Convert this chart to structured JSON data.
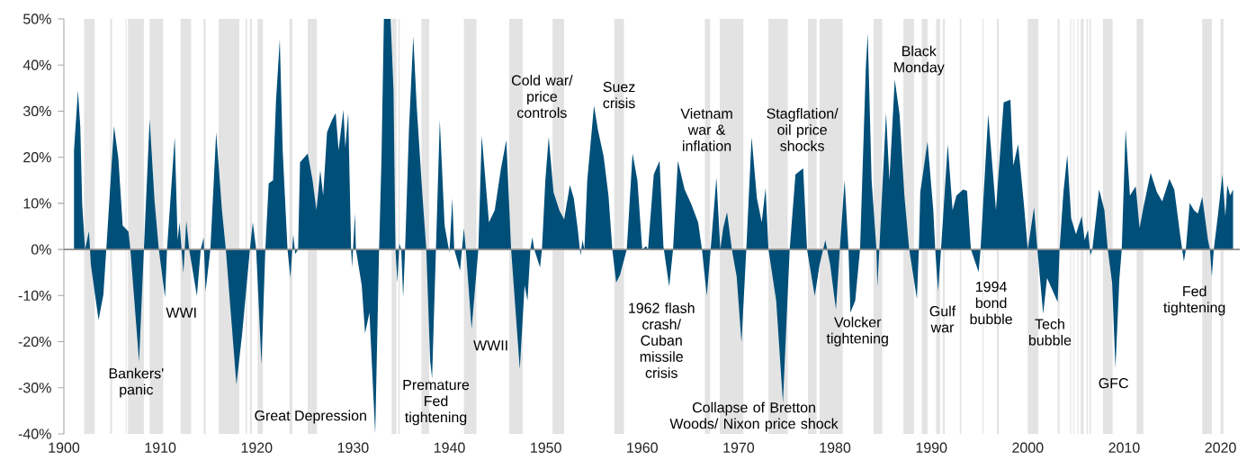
{
  "chart_data": {
    "type": "area",
    "color": "#004f79",
    "x": [
      1901.05,
      1901.46,
      1901.7,
      1901.9,
      1902.2,
      1902.6,
      1902.8,
      1903.6,
      1904.1,
      1904.4,
      1905.2,
      1905.65,
      1906.1,
      1906.7,
      1906.9,
      1907.8,
      1908.3,
      1908.9,
      1909.4,
      1909.85,
      1910.5,
      1910.7,
      1911.5,
      1911.8,
      1912.0,
      1912.4,
      1912.7,
      1913.0,
      1913.8,
      1914.2,
      1914.5,
      1914.7,
      1915.2,
      1915.8,
      1916.4,
      1916.8,
      1917.9,
      1918.5,
      1919.3,
      1919.6,
      1919.95,
      1920.5,
      1920.9,
      1921.25,
      1921.7,
      1922.0,
      1922.4,
      1922.7,
      1923.2,
      1923.5,
      1923.8,
      1924.0,
      1924.3,
      1924.5,
      1925.3,
      1925.8,
      1926.2,
      1926.6,
      1926.9,
      1927.3,
      1927.8,
      1928.2,
      1928.5,
      1929.0,
      1929.2,
      1929.5,
      1929.8,
      1929.9,
      1930.2,
      1930.3,
      1930.9,
      1931.25,
      1931.7,
      1932.3,
      1932.7,
      1932.95,
      1933.2,
      1933.9,
      1934.2,
      1934.4,
      1934.6,
      1934.8,
      1935.0,
      1935.2,
      1935.4,
      1935.8,
      1936.25,
      1936.6,
      1937.2,
      1937.6,
      1938.0,
      1938.2,
      1938.6,
      1939.0,
      1939.5,
      1940.0,
      1940.3,
      1940.5,
      1941.1,
      1941.5,
      1941.7,
      1942.3,
      1943.0,
      1943.35,
      1944.1,
      1944.7,
      1945.35,
      1945.9,
      1946.4,
      1947.3,
      1947.8,
      1948.1,
      1948.4,
      1948.6,
      1948.8,
      1949.4,
      1949.6,
      1949.95,
      1950.3,
      1950.8,
      1951.4,
      1951.9,
      1952.5,
      1952.9,
      1953.3,
      1953.6,
      1953.8,
      1954.0,
      1954.3,
      1955.0,
      1955.4,
      1956.0,
      1956.5,
      1956.9,
      1957.3,
      1957.7,
      1958.4,
      1959.0,
      1959.5,
      1960.0,
      1960.4,
      1960.6,
      1961.2,
      1961.8,
      1962.2,
      1962.8,
      1963.2,
      1963.7,
      1964.4,
      1965.1,
      1965.8,
      1966.2,
      1966.7,
      1967.1,
      1967.7,
      1968.1,
      1968.4,
      1968.8,
      1969.3,
      1969.8,
      1970.3,
      1970.8,
      1971.35,
      1971.9,
      1972.4,
      1972.8,
      1973.1,
      1973.9,
      1974.6,
      1975.3,
      1975.9,
      1976.7,
      1977.1,
      1977.9,
      1978.4,
      1979.0,
      1979.5,
      1980.1,
      1980.5,
      1981.0,
      1981.4,
      1981.6,
      1982.1,
      1982.6,
      1983.2,
      1983.4,
      1983.8,
      1984.3,
      1984.4,
      1984.6,
      1985.3,
      1985.65,
      1986.2,
      1986.7,
      1987.2,
      1987.7,
      1988.5,
      1988.7,
      1988.85,
      1989.6,
      1990.2,
      1990.4,
      1990.7,
      1991.0,
      1991.7,
      1992.2,
      1992.6,
      1993.3,
      1993.7,
      1994.1,
      1994.9,
      1995.1,
      1995.9,
      1996.7,
      1997.5,
      1998.2,
      1998.5,
      1999.0,
      1999.6,
      2000.0,
      2000.65,
      2001.0,
      2001.6,
      2002.0,
      2002.5,
      2003.1,
      2003.3,
      2003.7,
      2004.1,
      2004.5,
      2005.0,
      2005.6,
      2005.9,
      2006.25,
      2006.5,
      2006.7,
      2007.4,
      2007.95,
      2008.3,
      2008.75,
      2009.1,
      2009.5,
      2009.75,
      2010.15,
      2010.6,
      2011.2,
      2011.6,
      2012.0,
      2012.75,
      2013.4,
      2013.95,
      2014.7,
      2015.2,
      2015.8,
      2016.2,
      2016.4,
      2016.8,
      2017.25,
      2017.65,
      2018.1,
      2018.7,
      2018.9,
      2019.1,
      2019.3,
      2019.75,
      2020.2,
      2020.5,
      2020.7,
      2021.0,
      2021.3
    ],
    "values": [
      21.5,
      34.5,
      26.7,
      9.8,
      0,
      4,
      -3.3,
      -15.3,
      -9.8,
      0,
      26.7,
      19.8,
      5.2,
      3.9,
      0,
      -24.4,
      0,
      28.3,
      10.7,
      0,
      -10.4,
      0,
      24.4,
      2,
      5.9,
      -5.2,
      6.2,
      0,
      -10.1,
      0,
      2.6,
      -9.1,
      0,
      25.4,
      8.5,
      0,
      -29.3,
      -18.2,
      0,
      5.9,
      0,
      -25,
      0,
      14.3,
      15,
      31.9,
      45.6,
      21.5,
      0,
      -6.2,
      3.3,
      -1,
      0,
      18.9,
      20.8,
      15,
      8.5,
      17.2,
      11.7,
      25.4,
      28,
      29.6,
      21.5,
      30.3,
      22.1,
      29.6,
      0,
      -3.9,
      7.8,
      0,
      -7.8,
      -18.2,
      -13.7,
      -40,
      0,
      19.5,
      50,
      50,
      34.5,
      0,
      -7.2,
      1.3,
      0,
      -10.4,
      0,
      26,
      46.2,
      31.2,
      11.7,
      0,
      -24.1,
      -28,
      0,
      28,
      5.2,
      -0.7,
      11.1,
      0,
      -4.6,
      4.6,
      0,
      -17.2,
      0,
      24.7,
      5.9,
      8.5,
      17.6,
      23.7,
      0,
      -26,
      -7.8,
      -11.1,
      0,
      2.6,
      0,
      -3.9,
      0,
      15,
      24.4,
      12.4,
      8.5,
      6.5,
      14,
      11.1,
      4.6,
      -1.3,
      2,
      0,
      15,
      31.2,
      26,
      20.2,
      11.7,
      0,
      -7.2,
      -5.5,
      0,
      20.8,
      15,
      0,
      0.7,
      0,
      16.3,
      19.2,
      0.7,
      -8.1,
      0,
      19.2,
      13,
      9.8,
      5.9,
      0,
      -10.1,
      0,
      15.6,
      0,
      4.6,
      8.1,
      0,
      -5.9,
      -20.2,
      0,
      24.4,
      11.1,
      5.9,
      13.3,
      0,
      -11.1,
      -33.2,
      0,
      16.3,
      17.6,
      0,
      -10.1,
      -3.3,
      2,
      -3.3,
      -13,
      0,
      15,
      0,
      -13.7,
      -11.1,
      0,
      39.4,
      46.8,
      15,
      0,
      -8.1,
      0,
      29.6,
      15,
      36.8,
      29.3,
      11.7,
      0,
      -10.7,
      0,
      12.4,
      23.4,
      8.5,
      0,
      -9.1,
      0,
      22.8,
      8.5,
      11.7,
      13,
      12.7,
      0,
      -4.9,
      0,
      29.3,
      8.5,
      31.9,
      32.5,
      18.2,
      22.8,
      9.8,
      0,
      9.1,
      0,
      -14,
      -6.2,
      -8.5,
      -11.4,
      0,
      12.4,
      20.5,
      6.8,
      3.3,
      7.2,
      2,
      4.2,
      -1.3,
      0,
      13,
      8.5,
      0,
      -7.2,
      -25.7,
      -6.5,
      0,
      26,
      11.7,
      13.7,
      4.6,
      9.1,
      16.6,
      12.4,
      10.4,
      15.3,
      13,
      3.3,
      -2.6,
      0,
      10.1,
      8.5,
      7.8,
      11.4,
      2,
      0,
      -5.9,
      0,
      7.8,
      16.3,
      7.2,
      14,
      11.7,
      13
    ],
    "xlim": [
      1900,
      2022
    ],
    "ylim": [
      -40,
      50
    ],
    "xticks": [
      1900,
      1910,
      1920,
      1930,
      1940,
      1950,
      1960,
      1970,
      1980,
      1990,
      2000,
      2010,
      2020
    ],
    "yticks": [
      {
        "value": -40,
        "label": "-40%"
      },
      {
        "value": -30,
        "label": "-30%"
      },
      {
        "value": -20,
        "label": "-20%"
      },
      {
        "value": -10,
        "label": "-10%"
      },
      {
        "value": 0,
        "label": "0%"
      },
      {
        "value": 10,
        "label": "10%"
      },
      {
        "value": 20,
        "label": "20%"
      },
      {
        "value": 30,
        "label": "30%"
      },
      {
        "value": 40,
        "label": "40%"
      },
      {
        "value": 50,
        "label": "50%"
      }
    ],
    "bands": [
      {
        "axis": "x",
        "from": 1902.1,
        "to": 1903.2,
        "color": "#e3e3e3"
      },
      {
        "axis": "x",
        "from": 1904.8,
        "to": 1905.0,
        "color": "#e3e3e3"
      },
      {
        "axis": "x",
        "from": 1906.4,
        "to": 1906.5,
        "color": "#e3e3e3"
      },
      {
        "axis": "x",
        "from": 1906.65,
        "to": 1908.3,
        "color": "#e3e3e3"
      },
      {
        "axis": "x",
        "from": 1908.9,
        "to": 1910.3,
        "color": "#e3e3e3"
      },
      {
        "axis": "x",
        "from": 1912.1,
        "to": 1913.2,
        "color": "#e3e3e3"
      },
      {
        "axis": "x",
        "from": 1914.5,
        "to": 1914.7,
        "color": "#e3e3e3"
      },
      {
        "axis": "x",
        "from": 1916.05,
        "to": 1918.2,
        "color": "#e3e3e3"
      },
      {
        "axis": "x",
        "from": 1918.85,
        "to": 1919.0,
        "color": "#e3e3e3"
      },
      {
        "axis": "x",
        "from": 1919.3,
        "to": 1919.5,
        "color": "#e3e3e3"
      },
      {
        "axis": "x",
        "from": 1920.1,
        "to": 1920.65,
        "color": "#e3e3e3"
      },
      {
        "axis": "x",
        "from": 1923.4,
        "to": 1923.7,
        "color": "#e3e3e3"
      },
      {
        "axis": "x",
        "from": 1925.3,
        "to": 1926.25,
        "color": "#e3e3e3"
      },
      {
        "axis": "x",
        "from": 1934.0,
        "to": 1934.5,
        "color": "#e3e3e3"
      },
      {
        "axis": "x",
        "from": 1934.7,
        "to": 1934.85,
        "color": "#e3e3e3"
      },
      {
        "axis": "x",
        "from": 1937.1,
        "to": 1937.9,
        "color": "#e3e3e3"
      },
      {
        "axis": "x",
        "from": 1941.5,
        "to": 1942.8,
        "color": "#e3e3e3"
      },
      {
        "axis": "x",
        "from": 1946.2,
        "to": 1947.6,
        "color": "#e3e3e3"
      },
      {
        "axis": "x",
        "from": 1950.7,
        "to": 1951.9,
        "color": "#e3e3e3"
      },
      {
        "axis": "x",
        "from": 1957.1,
        "to": 1958.1,
        "color": "#e3e3e3"
      },
      {
        "axis": "x",
        "from": 1966.5,
        "to": 1967.05,
        "color": "#e3e3e3"
      },
      {
        "axis": "x",
        "from": 1968.05,
        "to": 1970.5,
        "color": "#e3e3e3"
      },
      {
        "axis": "x",
        "from": 1973.1,
        "to": 1975.1,
        "color": "#e3e3e3"
      },
      {
        "axis": "x",
        "from": 1977.2,
        "to": 1978.1,
        "color": "#e3e3e3"
      },
      {
        "axis": "x",
        "from": 1978.4,
        "to": 1980.8,
        "color": "#e3e3e3"
      },
      {
        "axis": "x",
        "from": 1984.0,
        "to": 1984.9,
        "color": "#e3e3e3"
      },
      {
        "axis": "x",
        "from": 1987.1,
        "to": 1988.2,
        "color": "#e3e3e3"
      },
      {
        "axis": "x",
        "from": 1989.0,
        "to": 1989.6,
        "color": "#e3e3e3"
      },
      {
        "axis": "x",
        "from": 1990.5,
        "to": 1990.9,
        "color": "#e3e3e3"
      },
      {
        "axis": "x",
        "from": 1991.2,
        "to": 1991.4,
        "color": "#e3e3e3"
      },
      {
        "axis": "x",
        "from": 1992.95,
        "to": 1993.1,
        "color": "#e3e3e3"
      },
      {
        "axis": "x",
        "from": 1995.3,
        "to": 1995.4,
        "color": "#e3e3e3"
      },
      {
        "axis": "x",
        "from": 1996.8,
        "to": 1997.0,
        "color": "#e3e3e3"
      },
      {
        "axis": "x",
        "from": 2000.0,
        "to": 2001.1,
        "color": "#e3e3e3"
      },
      {
        "axis": "x",
        "from": 2003.1,
        "to": 2003.3,
        "color": "#e3e3e3"
      },
      {
        "axis": "x",
        "from": 2004.4,
        "to": 2004.5,
        "color": "#e3e3e3"
      },
      {
        "axis": "x",
        "from": 2004.7,
        "to": 2004.8,
        "color": "#e3e3e3"
      },
      {
        "axis": "x",
        "from": 2005.15,
        "to": 2005.25,
        "color": "#e3e3e3"
      },
      {
        "axis": "x",
        "from": 2005.5,
        "to": 2005.8,
        "color": "#e3e3e3"
      },
      {
        "axis": "x",
        "from": 2006.1,
        "to": 2006.25,
        "color": "#e3e3e3"
      },
      {
        "axis": "x",
        "from": 2006.4,
        "to": 2006.55,
        "color": "#e3e3e3"
      },
      {
        "axis": "x",
        "from": 2007.8,
        "to": 2008.8,
        "color": "#e3e3e3"
      },
      {
        "axis": "x",
        "from": 2011.3,
        "to": 2012.0,
        "color": "#e3e3e3"
      },
      {
        "axis": "x",
        "from": 2018.1,
        "to": 2019.1,
        "color": "#e3e3e3"
      },
      {
        "axis": "x",
        "from": 2020.0,
        "to": 2020.3,
        "color": "#e3e3e3"
      }
    ],
    "annotations": [
      "Bankers' panic",
      "WWI",
      "Great Depression",
      "Premature Fed tightening",
      "WWII",
      "Cold war/ price controls",
      "Suez crisis",
      "1962 flash crash/ Cuban missile crisis",
      "Vietnam war & inflation",
      "Collapse of Bretton Woods/ Nixon price shock",
      "Stagflation/ oil price shocks",
      "Volcker tightening",
      "Black Monday",
      "Gulf war",
      "1994 bond bubble",
      "Tech bubble",
      "GFC",
      "Fed tightening"
    ]
  }
}
